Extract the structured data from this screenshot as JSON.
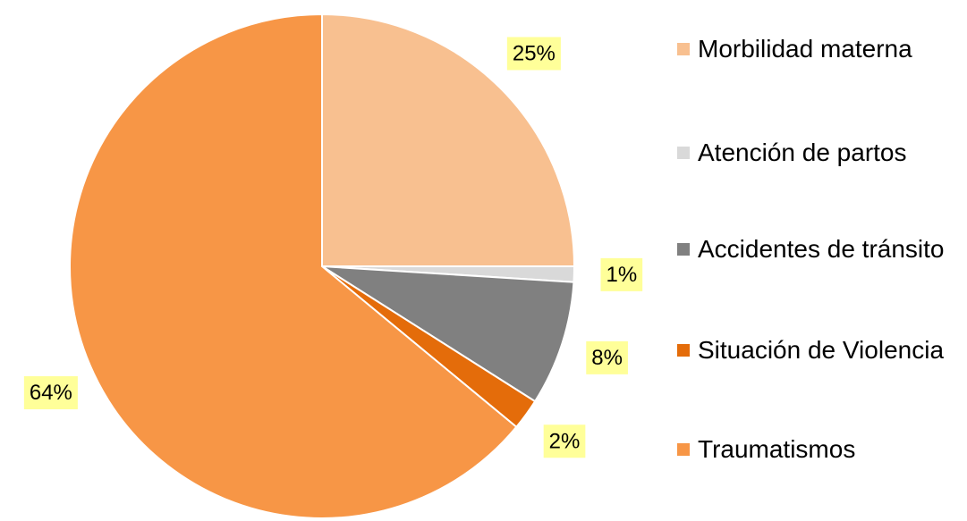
{
  "chart_data": {
    "type": "pie",
    "categories": [
      "Morbilidad materna",
      "Atención de partos",
      "Accidentes de tránsito",
      "Situación de Violencia",
      "Traumatismos"
    ],
    "values": [
      25,
      1,
      8,
      2,
      64
    ],
    "value_labels": [
      "25%",
      "1%",
      "8%",
      "2%",
      "64%"
    ],
    "colors": [
      "#F8C090",
      "#D9D9D9",
      "#808080",
      "#E46C0A",
      "#F79646"
    ],
    "legend": "right"
  }
}
